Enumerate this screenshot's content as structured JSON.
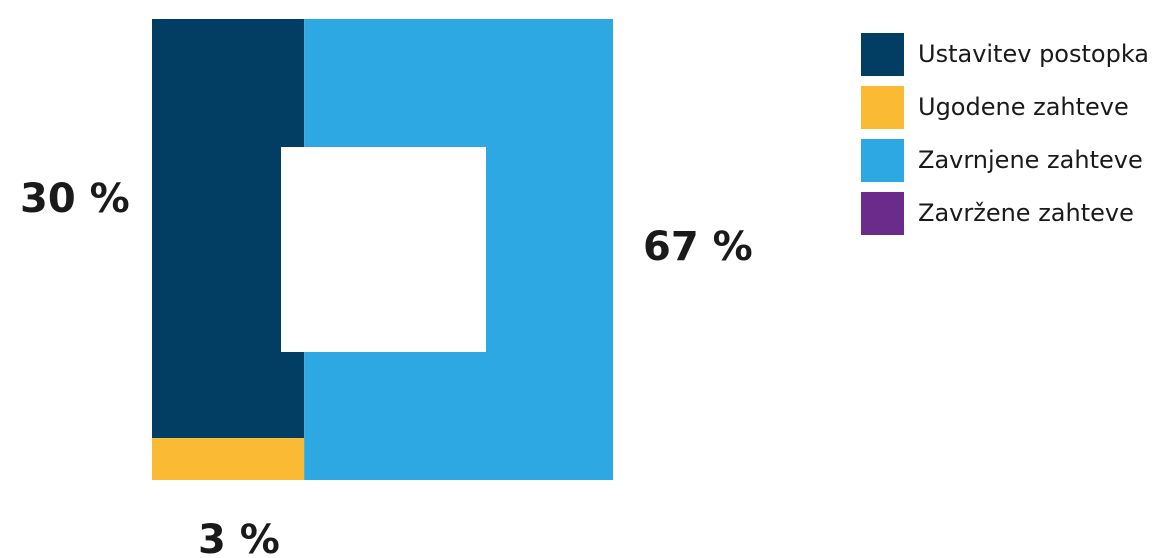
{
  "chart_data": {
    "type": "treemap",
    "title": "",
    "series": [
      {
        "name": "Ustavitev postopka",
        "value": 30,
        "label": "30 %",
        "color": "#023d63"
      },
      {
        "name": "Ugodene zahteve",
        "value": 3,
        "label": "3 %",
        "color": "#fbba33"
      },
      {
        "name": "Zavrnjene zahteve",
        "value": 67,
        "label": "67 %",
        "color": "#2ea8e2"
      },
      {
        "name": "Zavržene zahteve",
        "value": 0,
        "label": "",
        "color": "#6a2b8a"
      }
    ],
    "legend_position": "right"
  }
}
